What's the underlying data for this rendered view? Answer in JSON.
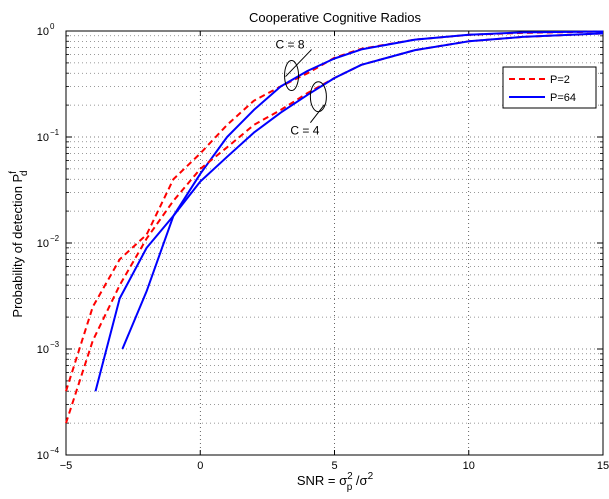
{
  "chart_data": {
    "type": "line",
    "title": "Cooperative Cognitive Radios",
    "xlabel": {
      "prefix": "SNR = ",
      "base1": "σ",
      "sup1": "2",
      "sub1": "p",
      "mid": " /",
      "base2": "σ",
      "sup2": "2"
    },
    "ylabel": {
      "base": "Probability of detection P",
      "sup": "f",
      "sub": "d"
    },
    "xscale": "linear",
    "yscale": "log",
    "xlim": [
      -5,
      15
    ],
    "ylim": [
      0.0001,
      1
    ],
    "xticks": [
      -5,
      0,
      5,
      10,
      15
    ],
    "xtick_labels": [
      "−5",
      "0",
      "5",
      "10",
      "15"
    ],
    "yticks": [
      {
        "value": 0.0001,
        "base": "10",
        "exp": "−4"
      },
      {
        "value": 0.001,
        "base": "10",
        "exp": "−3"
      },
      {
        "value": 0.01,
        "base": "10",
        "exp": "−2"
      },
      {
        "value": 0.1,
        "base": "10",
        "exp": "−1"
      },
      {
        "value": 1,
        "base": "10",
        "exp": "0"
      }
    ],
    "grid": true,
    "legend_position": "top-right",
    "legend": [
      {
        "label": "P=2",
        "color": "#ff0000",
        "style": "dashed"
      },
      {
        "label": "P=64",
        "color": "#0000ff",
        "style": "solid"
      }
    ],
    "series": [
      {
        "legend_index": 0,
        "group": "C = 8",
        "color": "#ff0000",
        "style": "dashed",
        "x": [
          -5,
          -4,
          -3,
          -2,
          -1,
          0,
          1,
          2,
          3,
          4,
          5,
          6,
          8,
          10,
          12,
          15
        ],
        "y": [
          0.0004,
          0.0025,
          0.007,
          0.012,
          0.04,
          0.07,
          0.13,
          0.22,
          0.3,
          0.4,
          0.56,
          0.68,
          0.83,
          0.92,
          0.96,
          0.99
        ]
      },
      {
        "legend_index": 1,
        "group": "C = 8",
        "color": "#0000ff",
        "style": "solid",
        "x": [
          -3.9,
          -3,
          -2,
          -1,
          0,
          1,
          2,
          3,
          4,
          5,
          6,
          8,
          10,
          12,
          15
        ],
        "y": [
          0.0004,
          0.003,
          0.009,
          0.018,
          0.045,
          0.1,
          0.18,
          0.3,
          0.42,
          0.55,
          0.67,
          0.83,
          0.92,
          0.97,
          0.99
        ]
      },
      {
        "legend_index": 0,
        "group": "C = 4",
        "color": "#ff0000",
        "style": "dashed",
        "x": [
          -5,
          -4,
          -3,
          -2,
          -1,
          0,
          1,
          2,
          3,
          4,
          5,
          6,
          8,
          10,
          12,
          15
        ],
        "y": [
          0.0002,
          0.0012,
          0.004,
          0.011,
          0.025,
          0.05,
          0.08,
          0.13,
          0.18,
          0.26,
          0.36,
          0.48,
          0.66,
          0.8,
          0.88,
          0.95
        ]
      },
      {
        "legend_index": 1,
        "group": "C = 4",
        "color": "#0000ff",
        "style": "solid",
        "x": [
          -2.9,
          -2,
          -1,
          0,
          1,
          2,
          3,
          4,
          5,
          6,
          8,
          10,
          12,
          15
        ],
        "y": [
          0.001,
          0.0035,
          0.018,
          0.038,
          0.065,
          0.11,
          0.17,
          0.25,
          0.36,
          0.48,
          0.66,
          0.8,
          0.88,
          0.95
        ]
      }
    ],
    "annotations": [
      {
        "text": "C = 8",
        "anchor_x": 3.4,
        "anchor_y": 0.38
      },
      {
        "text": "C = 4",
        "anchor_x": 4.4,
        "anchor_y": 0.24
      }
    ]
  }
}
